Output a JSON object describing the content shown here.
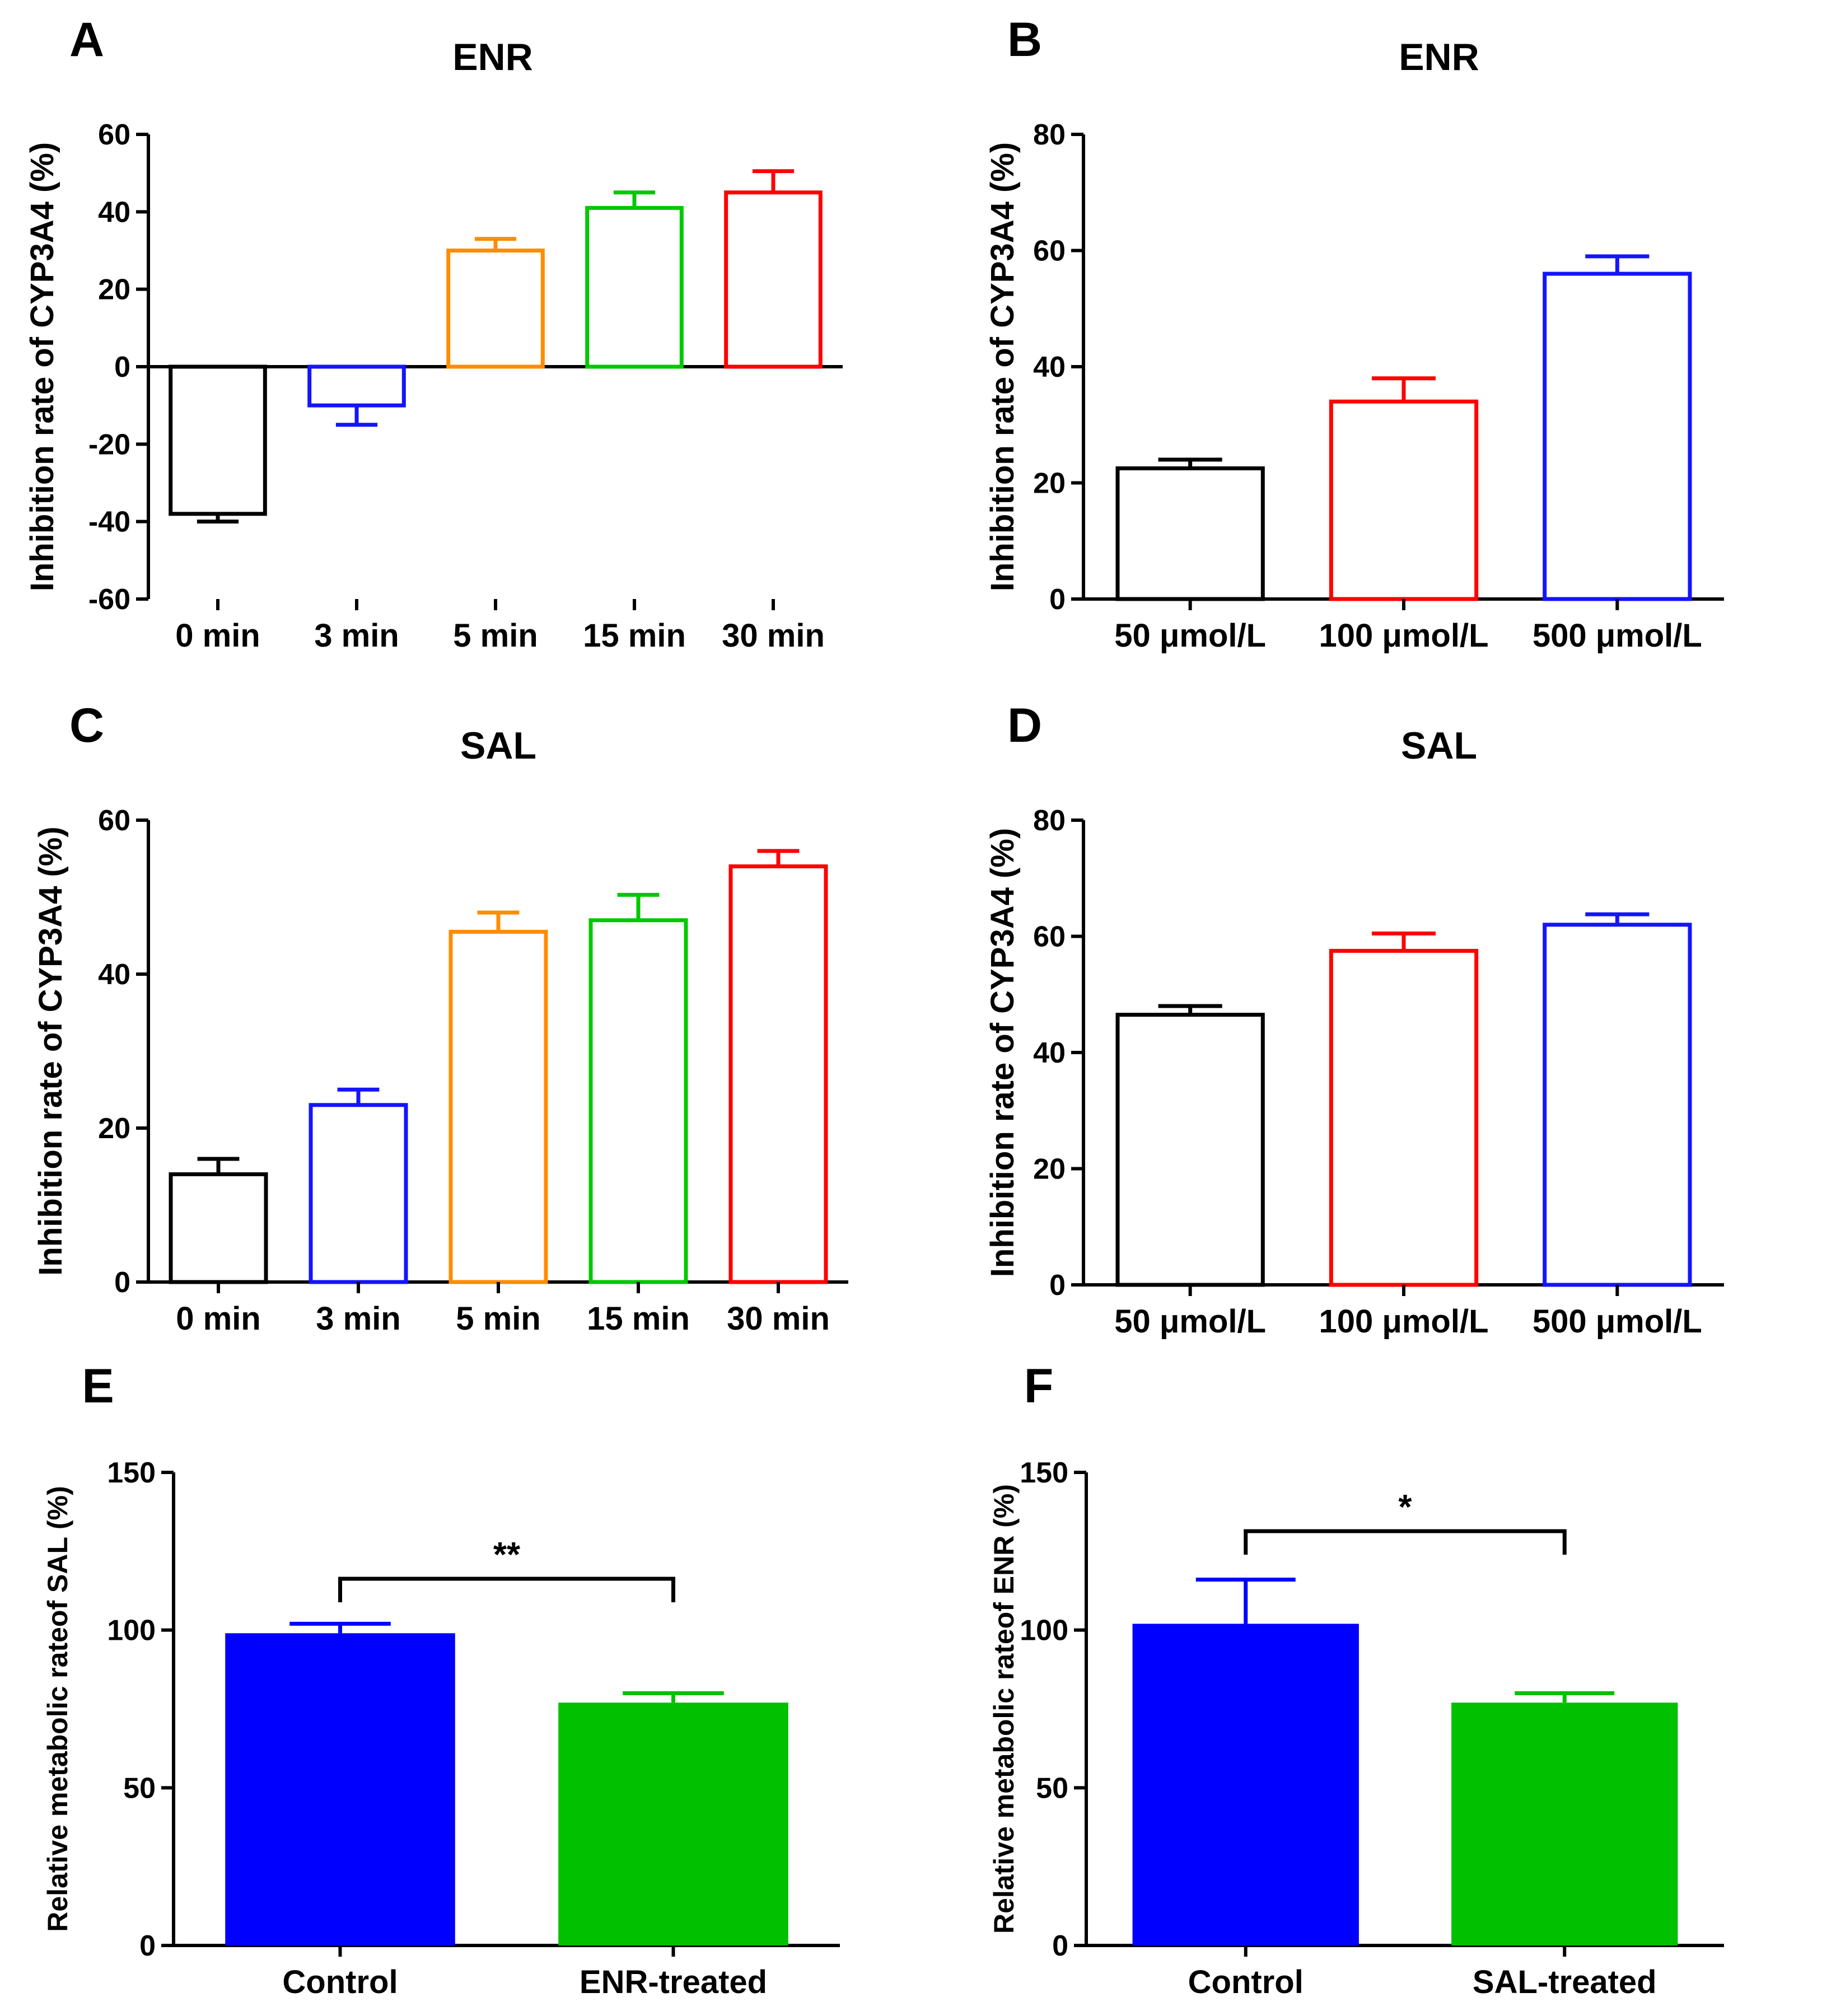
{
  "chart_data": [
    {
      "id": "A",
      "type": "bar",
      "title": "ENR",
      "ylabel": "Inhibition rate of CYP3A4 (%)",
      "xlabel": "",
      "ylim": [
        -60,
        60
      ],
      "yticks": [
        "-60",
        "-40",
        "-20",
        "0",
        "20",
        "40",
        "60"
      ],
      "yticks_num": [
        -60,
        -40,
        -20,
        0,
        20,
        40,
        60
      ],
      "style": "hollow",
      "categories": [
        "0 min",
        "3 min",
        "5 min",
        "15 min",
        "30 min"
      ],
      "values": [
        -38,
        -10,
        30,
        41,
        45
      ],
      "errors": [
        2,
        5,
        3,
        4,
        5.5
      ],
      "colors": [
        "#000000",
        "#1414ff",
        "#ff8c00",
        "#00c800",
        "#ff0000"
      ]
    },
    {
      "id": "B",
      "type": "bar",
      "title": "ENR",
      "ylabel": "Inhibition rate of CYP3A4 (%)",
      "xlabel": "",
      "ylim": [
        0,
        80
      ],
      "yticks": [
        "0",
        "20",
        "40",
        "60",
        "80"
      ],
      "yticks_num": [
        0,
        20,
        40,
        60,
        80
      ],
      "style": "hollow",
      "categories": [
        "50 μmol/L",
        "100 μmol/L",
        "500 μmol/L"
      ],
      "values": [
        22.5,
        34,
        56
      ],
      "errors": [
        1.5,
        4,
        3
      ],
      "colors": [
        "#000000",
        "#ff0000",
        "#1414ff"
      ]
    },
    {
      "id": "C",
      "type": "bar",
      "title": "SAL",
      "ylabel": "Inhibition rate of CYP3A4 (%)",
      "xlabel": "",
      "ylim": [
        0,
        60
      ],
      "yticks": [
        "0",
        "20",
        "40",
        "60"
      ],
      "yticks_num": [
        0,
        20,
        40,
        60
      ],
      "style": "hollow",
      "categories": [
        "0 min",
        "3 min",
        "5 min",
        "15 min",
        "30 min"
      ],
      "values": [
        14,
        23,
        45.5,
        47,
        54
      ],
      "errors": [
        2,
        2,
        2.5,
        3.3,
        2
      ],
      "colors": [
        "#000000",
        "#1414ff",
        "#ff8c00",
        "#00c800",
        "#ff0000"
      ]
    },
    {
      "id": "D",
      "type": "bar",
      "title": "SAL",
      "ylabel": "Inhibition rate of CYP3A4 (%)",
      "xlabel": "",
      "ylim": [
        0,
        80
      ],
      "yticks": [
        "0",
        "20",
        "40",
        "60",
        "80"
      ],
      "yticks_num": [
        0,
        20,
        40,
        60,
        80
      ],
      "style": "hollow",
      "categories": [
        "50 μmol/L",
        "100 μmol/L",
        "500 μmol/L"
      ],
      "values": [
        46.5,
        57.5,
        62
      ],
      "errors": [
        1.5,
        3,
        1.8
      ],
      "colors": [
        "#000000",
        "#ff0000",
        "#1414ff"
      ]
    },
    {
      "id": "E",
      "type": "bar",
      "title": "",
      "ylabel": "Relative metabolic rateof SAL (%)",
      "xlabel": "",
      "ylim": [
        0,
        150
      ],
      "yticks": [
        "0",
        "50",
        "100",
        "150"
      ],
      "yticks_num": [
        0,
        50,
        100,
        150
      ],
      "style": "filled",
      "categories": [
        "Control",
        "ENR-treated"
      ],
      "values": [
        99,
        77
      ],
      "errors": [
        3,
        3
      ],
      "colors": [
        "#0000ff",
        "#00c000"
      ],
      "significance": "**"
    },
    {
      "id": "F",
      "type": "bar",
      "title": "",
      "ylabel": "Relative metabolic rateof ENR (%)",
      "xlabel": "",
      "ylim": [
        0,
        150
      ],
      "yticks": [
        "0",
        "50",
        "100",
        "150"
      ],
      "yticks_num": [
        0,
        50,
        100,
        150
      ],
      "style": "filled",
      "categories": [
        "Control",
        "SAL-treated"
      ],
      "values": [
        102,
        77
      ],
      "errors": [
        14,
        3
      ],
      "colors": [
        "#0000ff",
        "#00c000"
      ],
      "significance": "*"
    }
  ]
}
